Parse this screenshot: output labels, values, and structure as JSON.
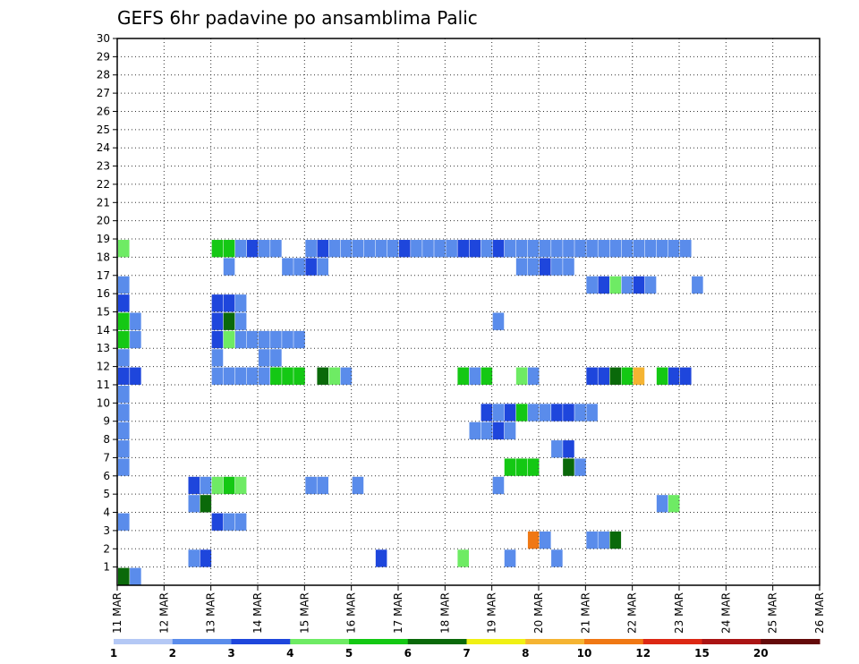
{
  "chart_data": {
    "type": "heatmap",
    "title": "GEFS 6hr padavine po ansamblima Palic",
    "x_tick_labels": [
      "11 MAR",
      "12 MAR",
      "13 MAR",
      "14 MAR",
      "15 MAR",
      "16 MAR",
      "17 MAR",
      "18 MAR",
      "19 MAR",
      "20 MAR",
      "21 MAR",
      "22 MAR",
      "23 MAR",
      "24 MAR",
      "25 MAR",
      "26 MAR"
    ],
    "x_range_days": [
      11,
      26
    ],
    "time_step_hours": 6,
    "y_tick_labels": [
      "1",
      "2",
      "3",
      "4",
      "5",
      "6",
      "7",
      "8",
      "9",
      "10",
      "11",
      "12",
      "13",
      "14",
      "15",
      "16",
      "17",
      "18",
      "19",
      "20",
      "21",
      "22",
      "23",
      "24",
      "25",
      "26",
      "27",
      "28",
      "29",
      "30"
    ],
    "y_range": [
      0,
      30
    ],
    "grid": true,
    "color_scale": {
      "labels": [
        "1",
        "2",
        "3",
        "4",
        "5",
        "6",
        "7",
        "8",
        "10",
        "12",
        "15",
        "20"
      ],
      "colors": [
        "#b4c8f5",
        "#5a8ceb",
        "#1e46dc",
        "#6eeb64",
        "#14c814",
        "#0a690a",
        "#f0f014",
        "#f5b432",
        "#f07814",
        "#dc2814",
        "#aa1414",
        "#640a0a"
      ]
    },
    "cells": [
      [
        0,
        0,
        5
      ],
      [
        1,
        0,
        1
      ],
      [
        6,
        1,
        1
      ],
      [
        7,
        1,
        2
      ],
      [
        22,
        1,
        2
      ],
      [
        29,
        1,
        3
      ],
      [
        33,
        1,
        1
      ],
      [
        37,
        1,
        1
      ],
      [
        35,
        2,
        8
      ],
      [
        36,
        2,
        1
      ],
      [
        40,
        2,
        1
      ],
      [
        41,
        2,
        1
      ],
      [
        42,
        2,
        5
      ],
      [
        0,
        3,
        1
      ],
      [
        8,
        3,
        2
      ],
      [
        9,
        3,
        1
      ],
      [
        10,
        3,
        1
      ],
      [
        6,
        4,
        1
      ],
      [
        7,
        4,
        5
      ],
      [
        46,
        4,
        1
      ],
      [
        47,
        4,
        3
      ],
      [
        6,
        5,
        2
      ],
      [
        7,
        5,
        1
      ],
      [
        8,
        5,
        3
      ],
      [
        9,
        5,
        4
      ],
      [
        10,
        5,
        3
      ],
      [
        16,
        5,
        1
      ],
      [
        17,
        5,
        1
      ],
      [
        20,
        5,
        1
      ],
      [
        32,
        5,
        1
      ],
      [
        33,
        6,
        4
      ],
      [
        34,
        6,
        4
      ],
      [
        35,
        6,
        4
      ],
      [
        38,
        6,
        5
      ],
      [
        39,
        6,
        1
      ],
      [
        0,
        6,
        1
      ],
      [
        0,
        7,
        1
      ],
      [
        37,
        7,
        1
      ],
      [
        38,
        7,
        2
      ],
      [
        0,
        8,
        1
      ],
      [
        30,
        8,
        1
      ],
      [
        31,
        8,
        1
      ],
      [
        32,
        8,
        2
      ],
      [
        33,
        8,
        1
      ],
      [
        0,
        9,
        1
      ],
      [
        31,
        9,
        2
      ],
      [
        32,
        9,
        1
      ],
      [
        33,
        9,
        2
      ],
      [
        34,
        9,
        4
      ],
      [
        35,
        9,
        1
      ],
      [
        36,
        9,
        1
      ],
      [
        37,
        9,
        2
      ],
      [
        38,
        9,
        2
      ],
      [
        39,
        9,
        1
      ],
      [
        40,
        9,
        1
      ],
      [
        0,
        10,
        1
      ],
      [
        0,
        11,
        2
      ],
      [
        1,
        11,
        2
      ],
      [
        8,
        11,
        1
      ],
      [
        9,
        11,
        1
      ],
      [
        10,
        11,
        1
      ],
      [
        11,
        11,
        1
      ],
      [
        12,
        11,
        1
      ],
      [
        13,
        11,
        4
      ],
      [
        14,
        11,
        4
      ],
      [
        15,
        11,
        4
      ],
      [
        17,
        11,
        5
      ],
      [
        18,
        11,
        3
      ],
      [
        19,
        11,
        1
      ],
      [
        29,
        11,
        4
      ],
      [
        30,
        11,
        1
      ],
      [
        31,
        11,
        4
      ],
      [
        34,
        11,
        3
      ],
      [
        35,
        11,
        1
      ],
      [
        40,
        11,
        2
      ],
      [
        41,
        11,
        2
      ],
      [
        42,
        11,
        5
      ],
      [
        43,
        11,
        4
      ],
      [
        44,
        11,
        7
      ],
      [
        46,
        11,
        4
      ],
      [
        47,
        11,
        2
      ],
      [
        48,
        11,
        2
      ],
      [
        0,
        12,
        1
      ],
      [
        8,
        12,
        1
      ],
      [
        12,
        12,
        1
      ],
      [
        13,
        12,
        1
      ],
      [
        0,
        13,
        4
      ],
      [
        1,
        13,
        1
      ],
      [
        8,
        13,
        2
      ],
      [
        9,
        13,
        3
      ],
      [
        10,
        13,
        1
      ],
      [
        11,
        13,
        1
      ],
      [
        12,
        13,
        1
      ],
      [
        13,
        13,
        1
      ],
      [
        14,
        13,
        1
      ],
      [
        15,
        13,
        1
      ],
      [
        0,
        14,
        4
      ],
      [
        1,
        14,
        1
      ],
      [
        8,
        14,
        2
      ],
      [
        9,
        14,
        5
      ],
      [
        10,
        14,
        1
      ],
      [
        32,
        14,
        1
      ],
      [
        0,
        15,
        2
      ],
      [
        8,
        15,
        2
      ],
      [
        9,
        15,
        2
      ],
      [
        10,
        15,
        1
      ],
      [
        0,
        16,
        1
      ],
      [
        40,
        16,
        1
      ],
      [
        41,
        16,
        2
      ],
      [
        42,
        16,
        3
      ],
      [
        43,
        16,
        1
      ],
      [
        44,
        16,
        2
      ],
      [
        45,
        16,
        1
      ],
      [
        49,
        16,
        1
      ],
      [
        9,
        17,
        1
      ],
      [
        14,
        17,
        1
      ],
      [
        15,
        17,
        1
      ],
      [
        16,
        17,
        2
      ],
      [
        17,
        17,
        1
      ],
      [
        34,
        17,
        1
      ],
      [
        35,
        17,
        1
      ],
      [
        36,
        17,
        2
      ],
      [
        37,
        17,
        1
      ],
      [
        38,
        17,
        1
      ],
      [
        0,
        18,
        3
      ],
      [
        8,
        18,
        4
      ],
      [
        9,
        18,
        4
      ],
      [
        10,
        18,
        1
      ],
      [
        11,
        18,
        2
      ],
      [
        12,
        18,
        1
      ],
      [
        13,
        18,
        1
      ],
      [
        16,
        18,
        1
      ],
      [
        17,
        18,
        2
      ],
      [
        18,
        18,
        1
      ],
      [
        19,
        18,
        1
      ],
      [
        20,
        18,
        1
      ],
      [
        21,
        18,
        1
      ],
      [
        22,
        18,
        1
      ],
      [
        23,
        18,
        1
      ],
      [
        24,
        18,
        2
      ],
      [
        25,
        18,
        1
      ],
      [
        26,
        18,
        1
      ],
      [
        27,
        18,
        1
      ],
      [
        28,
        18,
        1
      ],
      [
        29,
        18,
        2
      ],
      [
        30,
        18,
        2
      ],
      [
        31,
        18,
        1
      ],
      [
        32,
        18,
        2
      ],
      [
        33,
        18,
        1
      ],
      [
        34,
        18,
        1
      ],
      [
        35,
        18,
        1
      ],
      [
        36,
        18,
        1
      ],
      [
        37,
        18,
        1
      ],
      [
        38,
        18,
        1
      ],
      [
        39,
        18,
        1
      ],
      [
        40,
        18,
        1
      ],
      [
        41,
        18,
        1
      ],
      [
        42,
        18,
        1
      ],
      [
        43,
        18,
        1
      ],
      [
        44,
        18,
        1
      ],
      [
        45,
        18,
        1
      ],
      [
        46,
        18,
        1
      ],
      [
        47,
        18,
        1
      ],
      [
        48,
        18,
        1
      ]
    ]
  }
}
